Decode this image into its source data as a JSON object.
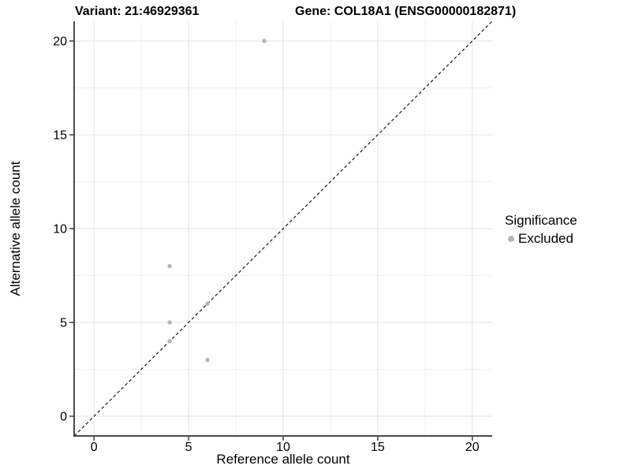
{
  "chart_data": {
    "type": "scatter",
    "title_left": "Variant: 21:46929361",
    "title_right": "Gene: COL18A1 (ENSG00000182871)",
    "xlabel": "Reference allele count",
    "ylabel": "Alternative allele count",
    "xlim": [
      -1.05,
      21.05
    ],
    "ylim": [
      -1.05,
      21.05
    ],
    "x_major_ticks": [
      0,
      5,
      10,
      15,
      20
    ],
    "y_major_ticks": [
      0,
      5,
      10,
      15,
      20
    ],
    "x_tick_labels": [
      "0",
      "5",
      "10",
      "15",
      "20"
    ],
    "y_tick_labels": [
      "0",
      "5",
      "10",
      "15",
      "20"
    ],
    "x_minor_ticks": [
      2.5,
      7.5,
      12.5,
      17.5
    ],
    "y_minor_ticks": [
      2.5,
      7.5,
      12.5,
      17.5
    ],
    "grid": true,
    "points": [
      {
        "x": 9,
        "y": 20,
        "series": "Excluded"
      },
      {
        "x": 4,
        "y": 8,
        "series": "Excluded"
      },
      {
        "x": 6,
        "y": 6,
        "series": "Excluded"
      },
      {
        "x": 4,
        "y": 5,
        "series": "Excluded"
      },
      {
        "x": 4,
        "y": 4,
        "series": "Excluded"
      },
      {
        "x": 6,
        "y": 3,
        "series": "Excluded"
      }
    ],
    "reference_line": {
      "type": "identity",
      "style": "dashed",
      "from": [
        -1.05,
        -1.05
      ],
      "to": [
        21.05,
        21.05
      ]
    },
    "legend": {
      "title": "Significance",
      "position": "right",
      "items": [
        {
          "label": "Excluded",
          "color": "#b5b5b5"
        }
      ]
    },
    "colors": {
      "point": "#b5b5b5",
      "grid_major": "#e2e2e2",
      "grid_minor": "#f0f0f0",
      "y_axis_line": "#000000",
      "x_axis_line": "#4a4a4a",
      "tick_mark": "#333333",
      "dashed_line": "#1a1a1a",
      "text": "#000000"
    }
  }
}
